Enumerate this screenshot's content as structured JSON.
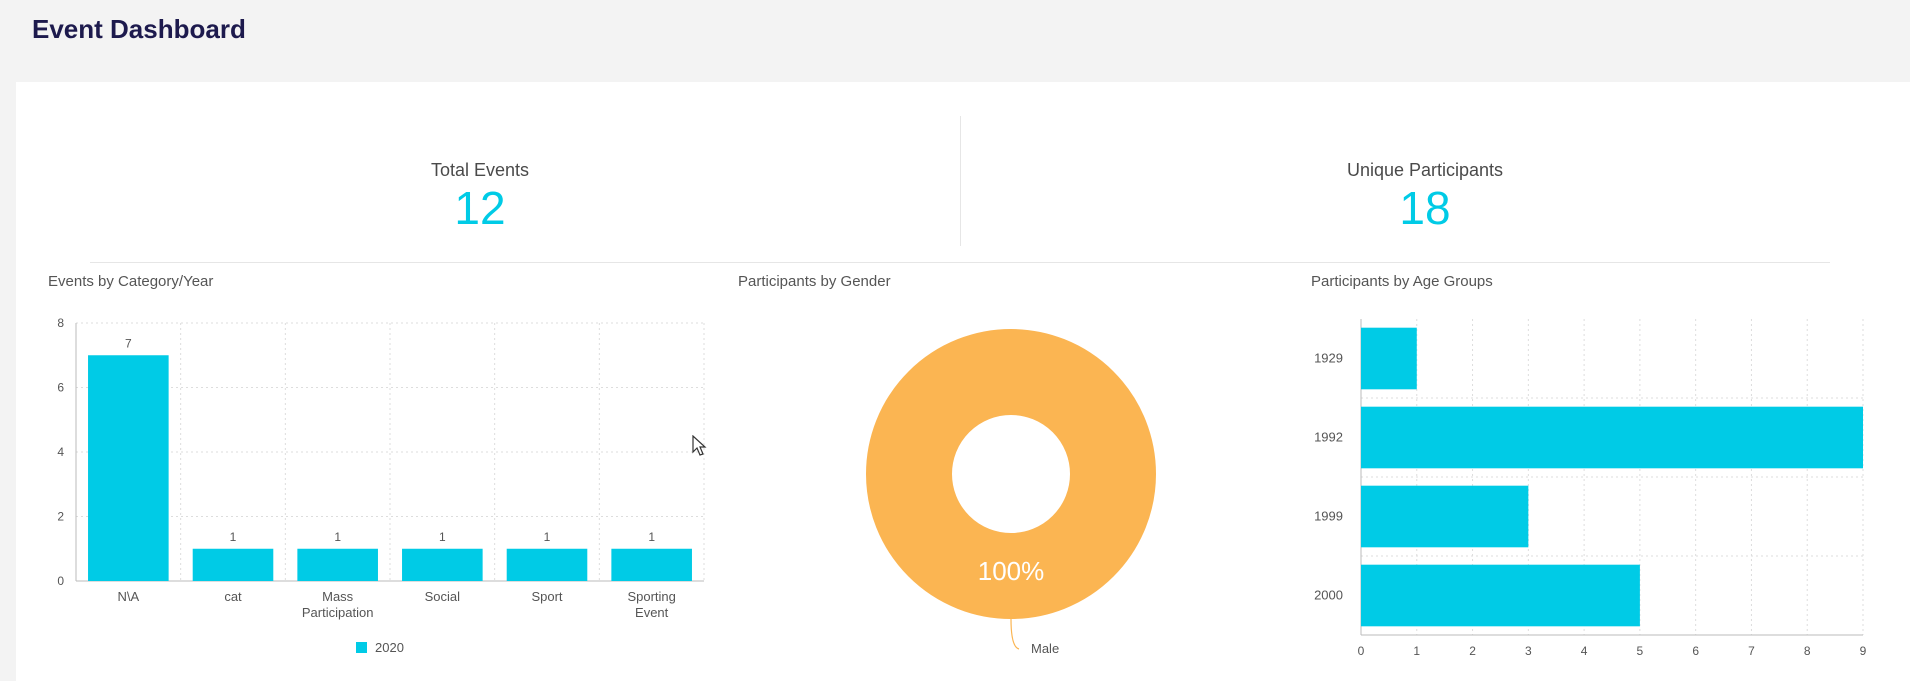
{
  "header": {
    "title": "Event Dashboard"
  },
  "kpis": {
    "total_events": {
      "label": "Total Events",
      "value": "12"
    },
    "unique_participants": {
      "label": "Unique Participants",
      "value": "18"
    }
  },
  "colors": {
    "accent": "#00cbe6",
    "male": "#fbb552",
    "title": "#1d1a4d"
  },
  "chart_data": [
    {
      "type": "bar",
      "title": "Events by Category/Year",
      "categories": [
        "N\\A",
        "cat",
        "Mass Participation",
        "Social",
        "Sport",
        "Sporting Event"
      ],
      "series": [
        {
          "name": "2020",
          "values": [
            7,
            1,
            1,
            1,
            1,
            1
          ]
        }
      ],
      "ylim": [
        0,
        8
      ],
      "yticks": [
        0,
        2,
        4,
        6,
        8
      ],
      "grid": true,
      "legend": "bottom"
    },
    {
      "type": "pie",
      "title": "Participants by Gender",
      "slices": [
        {
          "label": "Male",
          "value": 100,
          "display": "100%"
        }
      ],
      "donut": true
    },
    {
      "type": "bar",
      "orientation": "horizontal",
      "title": "Participants by Age Groups",
      "categories": [
        "1929",
        "1992",
        "1999",
        "2000"
      ],
      "values": [
        1,
        9,
        3,
        5
      ],
      "xlim": [
        0,
        9
      ],
      "xticks": [
        0,
        1,
        2,
        3,
        4,
        5,
        6,
        7,
        8,
        9
      ],
      "grid": true
    }
  ]
}
